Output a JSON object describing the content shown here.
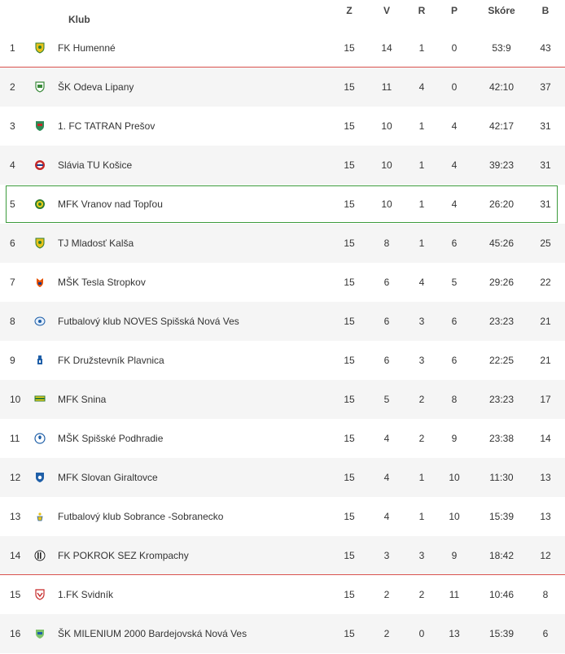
{
  "header": {
    "club": "Klub",
    "z": "Z",
    "v": "V",
    "r": "R",
    "p": "P",
    "score": "Skóre",
    "b": "B"
  },
  "colors": {
    "promotion_line": "#d9534f",
    "relegation_line": "#d9534f",
    "highlight_border": "#3c9a3c",
    "alt_row": "#f5f5f5"
  },
  "rows": [
    {
      "rank": "1",
      "club": "FK Humenné",
      "z": "15",
      "v": "14",
      "r": "1",
      "p": "0",
      "score": "53:9",
      "b": "43",
      "icon": "crest-yellow-green"
    },
    {
      "rank": "2",
      "club": "ŠK Odeva Lipany",
      "z": "15",
      "v": "11",
      "r": "4",
      "p": "0",
      "score": "42:10",
      "b": "37",
      "icon": "crest-green-white"
    },
    {
      "rank": "3",
      "club": "1. FC TATRAN Prešov",
      "z": "15",
      "v": "10",
      "r": "1",
      "p": "4",
      "score": "42:17",
      "b": "31",
      "icon": "crest-green-red"
    },
    {
      "rank": "4",
      "club": "Slávia TU Košice",
      "z": "15",
      "v": "10",
      "r": "1",
      "p": "4",
      "score": "39:23",
      "b": "31",
      "icon": "crest-red-blue"
    },
    {
      "rank": "5",
      "club": "MFK Vranov nad Topľou",
      "z": "15",
      "v": "10",
      "r": "1",
      "p": "4",
      "score": "26:20",
      "b": "31",
      "icon": "crest-green-yellow-round"
    },
    {
      "rank": "6",
      "club": "TJ Mladosť Kalša",
      "z": "15",
      "v": "8",
      "r": "1",
      "p": "6",
      "score": "45:26",
      "b": "25",
      "icon": "crest-yellow-green"
    },
    {
      "rank": "7",
      "club": "MŠK Tesla Stropkov",
      "z": "15",
      "v": "6",
      "r": "4",
      "p": "5",
      "score": "29:26",
      "b": "22",
      "icon": "crest-orange-blue"
    },
    {
      "rank": "8",
      "club": "Futbalový klub NOVES Spišská Nová Ves",
      "z": "15",
      "v": "6",
      "r": "3",
      "p": "6",
      "score": "23:23",
      "b": "21",
      "icon": "crest-blue-white"
    },
    {
      "rank": "9",
      "club": "FK Družstevník Plavnica",
      "z": "15",
      "v": "6",
      "r": "3",
      "p": "6",
      "score": "22:25",
      "b": "21",
      "icon": "crest-blue-tower"
    },
    {
      "rank": "10",
      "club": "MFK Snina",
      "z": "15",
      "v": "5",
      "r": "2",
      "p": "8",
      "score": "23:23",
      "b": "17",
      "icon": "crest-yellow-green-flag"
    },
    {
      "rank": "11",
      "club": "MŠK Spišské Podhradie",
      "z": "15",
      "v": "4",
      "r": "2",
      "p": "9",
      "score": "23:38",
      "b": "14",
      "icon": "crest-blue-ball"
    },
    {
      "rank": "12",
      "club": "MFK Slovan Giraltovce",
      "z": "15",
      "v": "4",
      "r": "1",
      "p": "10",
      "score": "11:30",
      "b": "13",
      "icon": "crest-blue-shield"
    },
    {
      "rank": "13",
      "club": "Futbalový klub Sobrance -Sobranecko",
      "z": "15",
      "v": "4",
      "r": "1",
      "p": "10",
      "score": "15:39",
      "b": "13",
      "icon": "crest-yellow-blue-small"
    },
    {
      "rank": "14",
      "club": "FK POKROK SEZ Krompachy",
      "z": "15",
      "v": "3",
      "r": "3",
      "p": "9",
      "score": "18:42",
      "b": "12",
      "icon": "crest-black-white-stripes"
    },
    {
      "rank": "15",
      "club": "1.FK Svidník",
      "z": "15",
      "v": "2",
      "r": "2",
      "p": "11",
      "score": "10:46",
      "b": "8",
      "icon": "crest-red-white"
    },
    {
      "rank": "16",
      "club": "ŠK MILENIUM 2000 Bardejovská Nová Ves",
      "z": "15",
      "v": "2",
      "r": "0",
      "p": "13",
      "score": "15:39",
      "b": "6",
      "icon": "crest-green-blue"
    }
  ]
}
